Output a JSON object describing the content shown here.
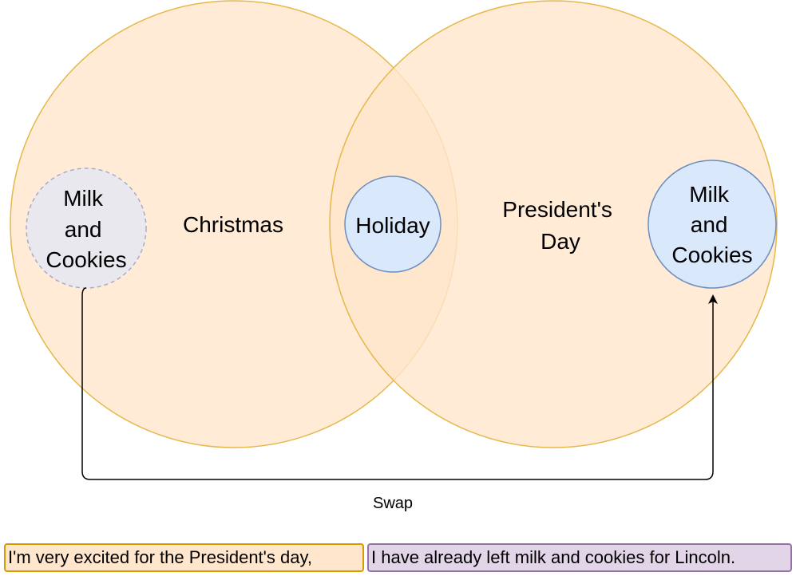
{
  "venn": {
    "left_label": "Christmas",
    "right_label_line1": "President's",
    "right_label_line2": "Day",
    "center_label": "Holiday",
    "faded_node_lines": [
      "Milk",
      "and",
      "Cookies"
    ],
    "target_node_lines": [
      "Milk",
      "and",
      "Cookies"
    ],
    "edge_label": "Swap"
  },
  "caption": {
    "left": "I'm very excited for the President's day,",
    "right": "I have already left milk and cookies for Lincoln."
  },
  "colors": {
    "set_fill": "#ffe6cc",
    "set_stroke": "#e6b84a",
    "node_fill": "#dae8fc",
    "node_stroke": "#6c8ebf",
    "faded_fill": "#e8e8ee",
    "faded_stroke": "#aaaacc",
    "faded_text": "#808080",
    "caption_left_fill": "#ffe6cc",
    "caption_left_border": "#d79b00",
    "caption_right_fill": "#e1d5e7",
    "caption_right_border": "#9673a6"
  }
}
